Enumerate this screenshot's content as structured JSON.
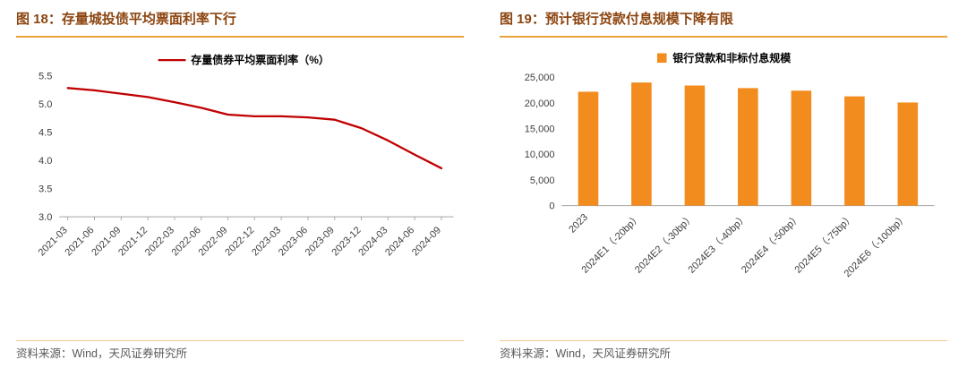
{
  "colors": {
    "title": "#8C4510",
    "title_rule": "#E8A33D",
    "source_rule": "#F0C896",
    "source_text": "#595959",
    "axis": "#A6A6A6",
    "tick_text": "#404040",
    "legend_text": "#000000",
    "line_series": "#C00000",
    "bar_series": "#F28C1E"
  },
  "figures": [
    {
      "title": "图 18：存量城投债平均票面利率下行",
      "source": "资料来源：Wind，天风证券研究所"
    },
    {
      "title": "图 19：预计银行贷款付息规模下降有限",
      "source": "资料来源：Wind，天风证券研究所"
    }
  ],
  "chart_data": [
    {
      "type": "line",
      "title": "存量城投债平均票面利率下行",
      "legend": "存量债券平均票面利率（%）",
      "x": [
        "2021-03",
        "2021-06",
        "2021-09",
        "2021-12",
        "2022-03",
        "2022-06",
        "2022-09",
        "2022-12",
        "2023-03",
        "2023-06",
        "2023-09",
        "2023-12",
        "2024-03",
        "2024-06",
        "2024-09"
      ],
      "values": [
        5.28,
        5.24,
        5.18,
        5.12,
        5.03,
        4.93,
        4.81,
        4.78,
        4.78,
        4.76,
        4.72,
        4.57,
        4.35,
        4.1,
        3.86
      ],
      "ylim": [
        3.0,
        5.5
      ],
      "yticks": [
        5.5,
        5.0,
        4.5,
        4.0,
        3.5,
        3.0
      ],
      "grid": false,
      "legend_position": "top-center",
      "line_color": "#C00000"
    },
    {
      "type": "bar",
      "title": "预计银行贷款付息规模下降有限",
      "legend": "银行贷款和非标付息规模",
      "categories": [
        "2023",
        "2024E1（-20bp）",
        "2024E2（-30bp）",
        "2024E3（-40bp）",
        "2024E4（-50bp）",
        "2024E5（-75bp）",
        "2024E6（-100bp）"
      ],
      "values": [
        22200,
        24000,
        23400,
        22900,
        22400,
        21300,
        20100
      ],
      "ylim": [
        0,
        25000
      ],
      "yticks": [
        25000,
        20000,
        15000,
        10000,
        5000,
        0
      ],
      "grid": false,
      "legend_position": "top-center",
      "bar_color": "#F28C1E"
    }
  ]
}
